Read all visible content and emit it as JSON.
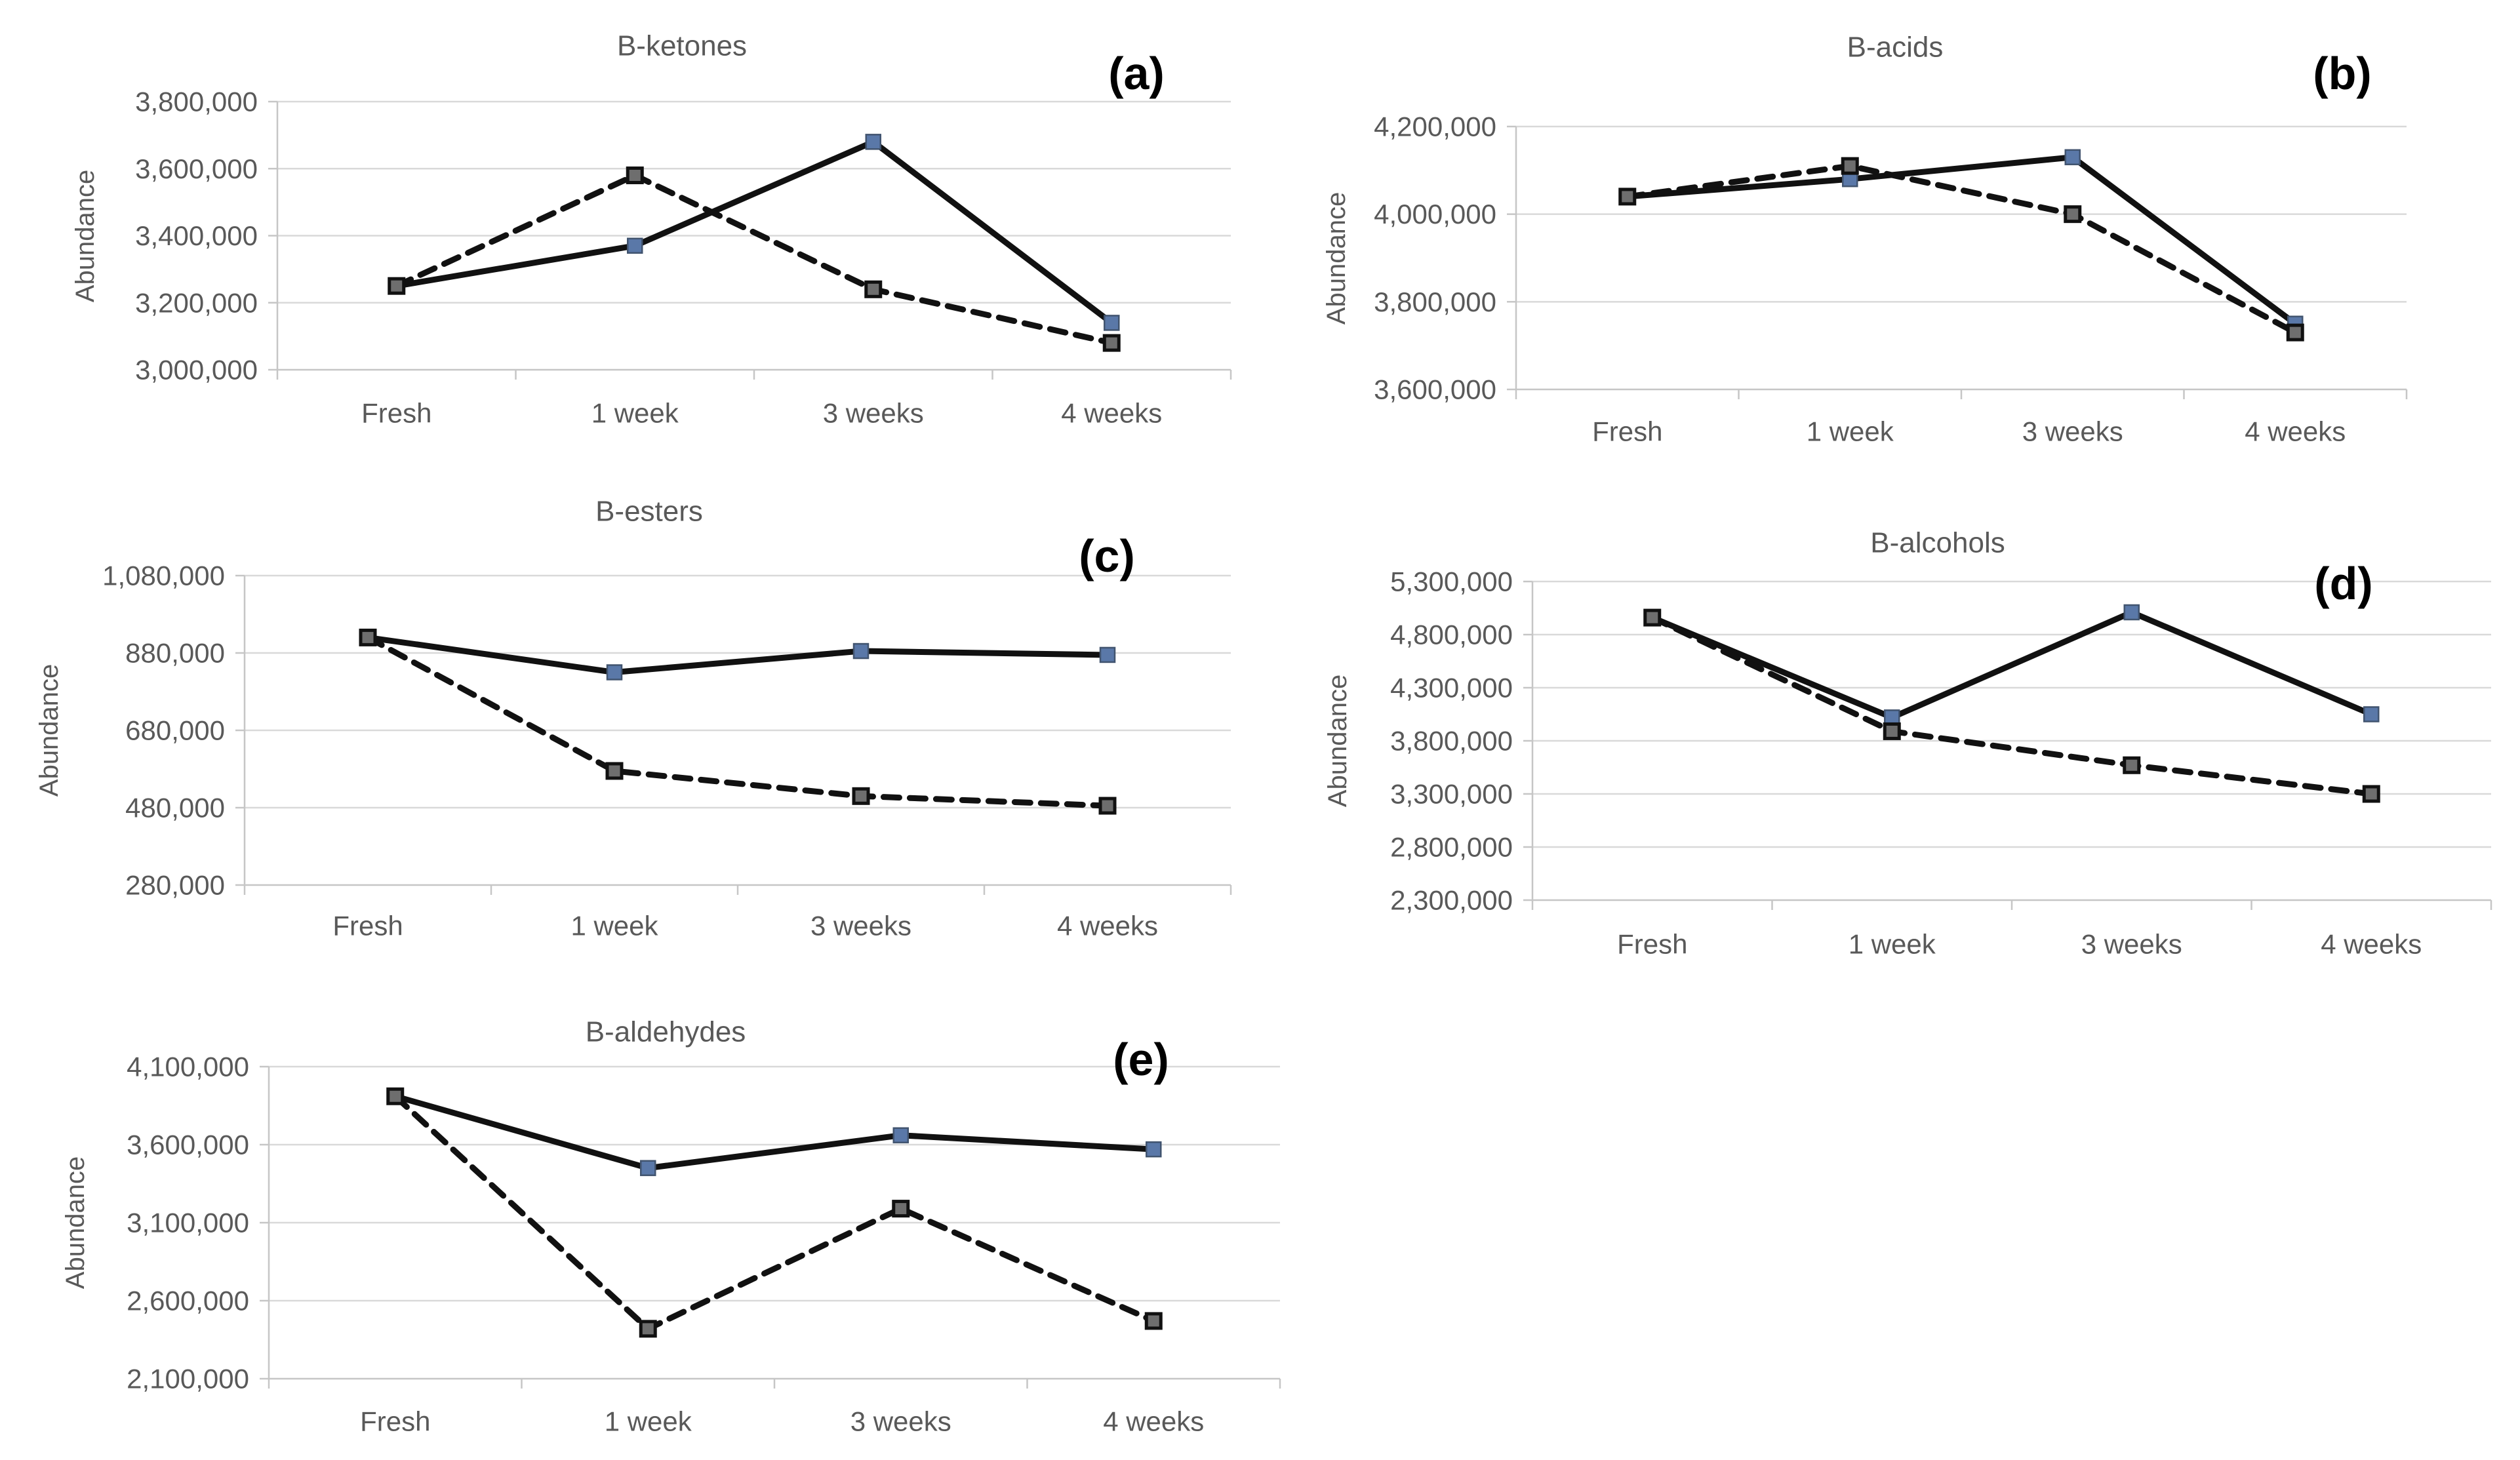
{
  "page": {
    "background": "#ffffff",
    "axis_label": "Abundance",
    "x_categories": [
      "Fresh",
      "1 week",
      "3 weeks",
      "4 weeks"
    ]
  },
  "colors": {
    "grid": "#d9d9d9",
    "axis": "#c6c6c6",
    "text": "#595959",
    "line": "#111111",
    "solid_marker_fill": "#5a78a8",
    "solid_marker_stroke": "#41546f",
    "dashed_marker_fill": "#6e6e6e",
    "dashed_marker_stroke": "#111111",
    "panel_letter": "#000000"
  },
  "chart_data": [
    {
      "id": "a",
      "type": "line",
      "panel_label": "(a)",
      "title": "B-ketones",
      "ylabel": "Abundance",
      "categories": [
        "Fresh",
        "1 week",
        "3 weeks",
        "4 weeks"
      ],
      "ymin": 3000000,
      "ymax": 3800000,
      "ystep": 200000,
      "ytick_labels": [
        "3,000,000",
        "3,200,000",
        "3,400,000",
        "3,600,000",
        "3,800,000"
      ],
      "grid": true,
      "legend": "none",
      "series": [
        {
          "name": "solid-line-series",
          "style": "solid",
          "values": [
            3250000,
            3370000,
            3680000,
            3140000
          ]
        },
        {
          "name": "dashed-line-series",
          "style": "dashed",
          "values": [
            3250000,
            3580000,
            3240000,
            3080000
          ]
        }
      ],
      "layout": {
        "plot": {
          "l": 423,
          "t": 155,
          "r": 1877,
          "b": 564
        },
        "title_pos": [
          1040,
          70
        ],
        "letter_pos": [
          1733,
          112
        ],
        "ylabel_pos": [
          130,
          360
        ],
        "xlabel_y": 630,
        "ytick_x": 393
      }
    },
    {
      "id": "b",
      "type": "line",
      "panel_label": "(b)",
      "title": "B-acids",
      "ylabel": "Abundance",
      "categories": [
        "Fresh",
        "1 week",
        "3 weeks",
        "4 weeks"
      ],
      "ymin": 3600000,
      "ymax": 4200000,
      "ystep": 200000,
      "ytick_labels": [
        "3,600,000",
        "3,800,000",
        "4,000,000",
        "4,200,000"
      ],
      "grid": true,
      "legend": "none",
      "series": [
        {
          "name": "solid-line-series",
          "style": "solid",
          "values": [
            4040000,
            4080000,
            4130000,
            3750000
          ]
        },
        {
          "name": "dashed-line-series",
          "style": "dashed",
          "values": [
            4040000,
            4110000,
            4000000,
            3730000
          ]
        }
      ],
      "layout": {
        "plot": {
          "l": 2312,
          "t": 193,
          "r": 3670,
          "b": 594
        },
        "title_pos": [
          2890,
          72
        ],
        "letter_pos": [
          3572,
          112
        ],
        "ylabel_pos": [
          2038,
          394
        ],
        "xlabel_y": 658,
        "ytick_x": 2282
      }
    },
    {
      "id": "c",
      "type": "line",
      "panel_label": "(c)",
      "title": "B-esters",
      "ylabel": "Abundance",
      "categories": [
        "Fresh",
        "1 week",
        "3 weeks",
        "4 weeks"
      ],
      "ymin": 280000,
      "ymax": 1080000,
      "ystep": 200000,
      "ytick_labels": [
        "280,000",
        "480,000",
        "680,000",
        "880,000",
        "1,080,000"
      ],
      "grid": true,
      "legend": "none",
      "series": [
        {
          "name": "solid-line-series",
          "style": "solid",
          "values": [
            920000,
            830000,
            885000,
            875000
          ]
        },
        {
          "name": "dashed-line-series",
          "style": "dashed",
          "values": [
            920000,
            575000,
            510000,
            485000
          ]
        }
      ],
      "layout": {
        "plot": {
          "l": 373,
          "t": 878,
          "r": 1877,
          "b": 1350
        },
        "title_pos": [
          990,
          780
        ],
        "letter_pos": [
          1688,
          848
        ],
        "ylabel_pos": [
          75,
          1114
        ],
        "xlabel_y": 1412,
        "ytick_x": 343
      }
    },
    {
      "id": "d",
      "type": "line",
      "panel_label": "(d)",
      "title": "B-alcohols",
      "ylabel": "Abundance",
      "categories": [
        "Fresh",
        "1 week",
        "3 weeks",
        "4 weeks"
      ],
      "ymin": 2300000,
      "ymax": 5300000,
      "ystep": 500000,
      "ytick_labels": [
        "2,300,000",
        "2,800,000",
        "3,300,000",
        "3,800,000",
        "4,300,000",
        "4,800,000",
        "5,300,000"
      ],
      "grid": true,
      "legend": "none",
      "series": [
        {
          "name": "solid-line-series",
          "style": "solid",
          "values": [
            4960000,
            4020000,
            5010000,
            4050000
          ]
        },
        {
          "name": "dashed-line-series",
          "style": "dashed",
          "values": [
            4960000,
            3890000,
            3570000,
            3300000
          ]
        }
      ],
      "layout": {
        "plot": {
          "l": 2337,
          "t": 887,
          "r": 3799,
          "b": 1373
        },
        "title_pos": [
          2955,
          828
        ],
        "letter_pos": [
          3574,
          890
        ],
        "ylabel_pos": [
          2040,
          1130
        ],
        "xlabel_y": 1440,
        "ytick_x": 2307
      }
    },
    {
      "id": "e",
      "type": "line",
      "panel_label": "(e)",
      "title": "B-aldehydes",
      "ylabel": "Abundance",
      "categories": [
        "Fresh",
        "1 week",
        "3 weeks",
        "4 weeks"
      ],
      "ymin": 2100000,
      "ymax": 4100000,
      "ystep": 500000,
      "ytick_labels": [
        "2,100,000",
        "2,600,000",
        "3,100,000",
        "3,600,000",
        "4,100,000"
      ],
      "grid": true,
      "legend": "none",
      "series": [
        {
          "name": "solid-line-series",
          "style": "solid",
          "values": [
            3910000,
            3450000,
            3660000,
            3570000
          ]
        },
        {
          "name": "dashed-line-series",
          "style": "dashed",
          "values": [
            3910000,
            2420000,
            3190000,
            2470000
          ]
        }
      ],
      "layout": {
        "plot": {
          "l": 410,
          "t": 1627,
          "r": 1952,
          "b": 2103
        },
        "title_pos": [
          1015,
          1574
        ],
        "letter_pos": [
          1740,
          1616
        ],
        "ylabel_pos": [
          115,
          1865
        ],
        "xlabel_y": 2168,
        "ytick_x": 380
      }
    }
  ]
}
